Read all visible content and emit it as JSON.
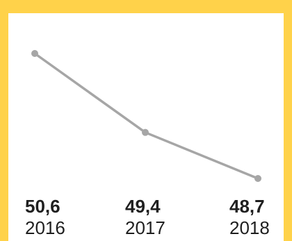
{
  "chart_data": {
    "type": "line",
    "categories": [
      "2016",
      "2017",
      "2018"
    ],
    "values": [
      50.6,
      49.4,
      48.7
    ],
    "value_labels": [
      "50,6",
      "49,4",
      "48,7"
    ],
    "title": "",
    "xlabel": "",
    "ylabel": "",
    "grid": false,
    "line_color": "#a6a6a6"
  },
  "colors": {
    "frame": "#FFD24A",
    "background": "#ffffff",
    "text": "#1f1f1f"
  }
}
